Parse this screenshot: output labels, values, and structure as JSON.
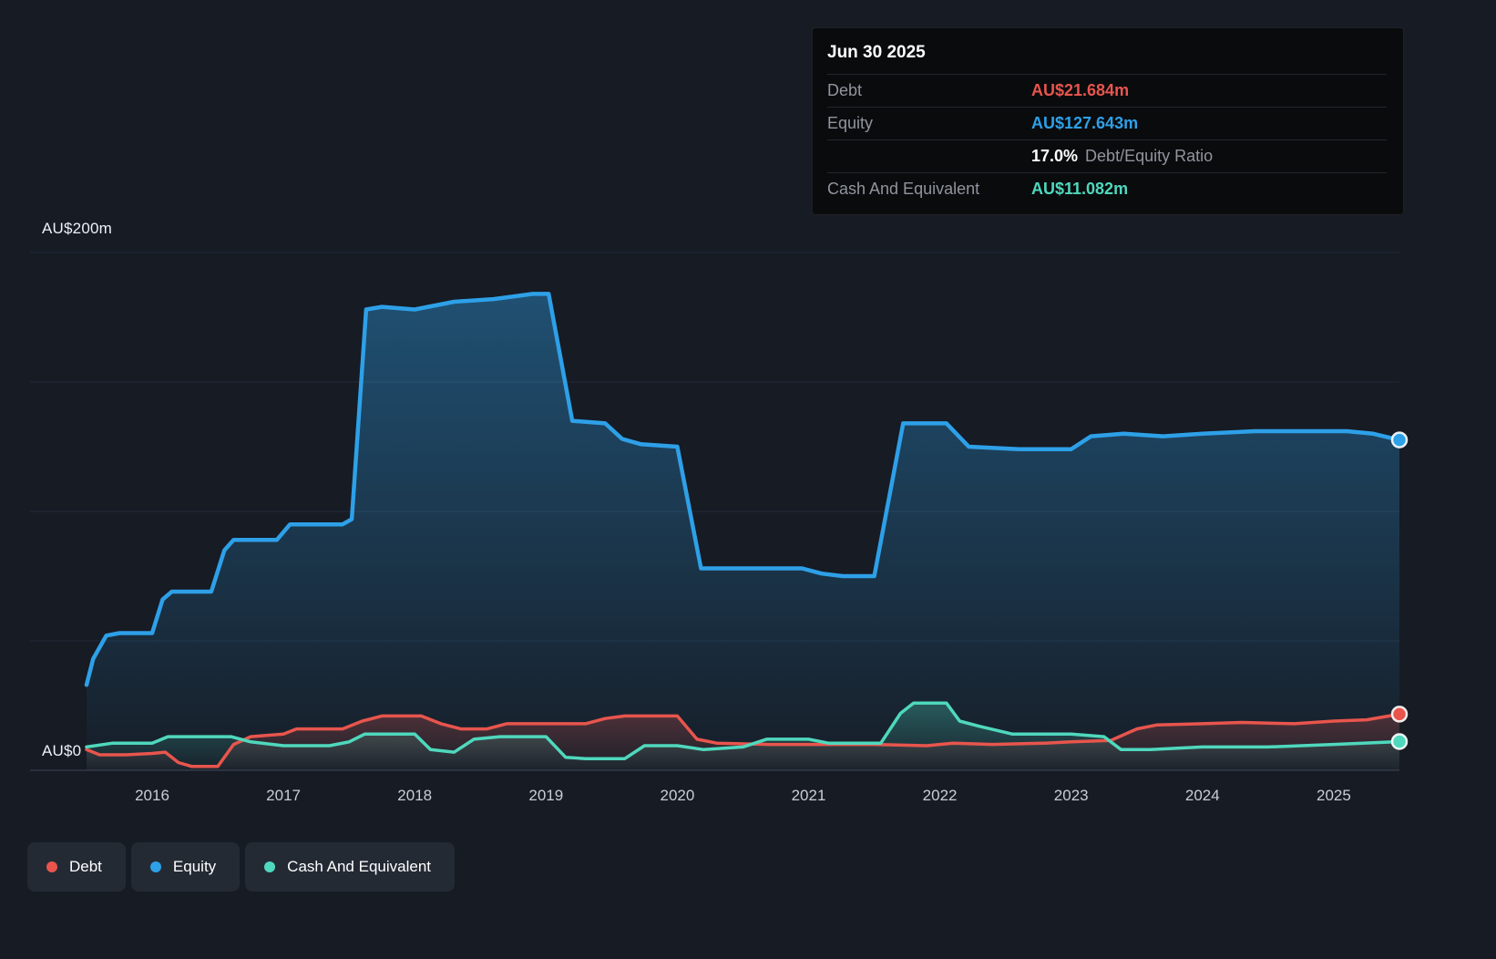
{
  "axis": {
    "y_top_label": "AU$200m",
    "y_zero_label": "AU$0"
  },
  "tooltip": {
    "date": "Jun 30 2025",
    "debt_label": "Debt",
    "debt_value": "AU$21.684m",
    "equity_label": "Equity",
    "equity_value": "AU$127.643m",
    "ratio_value": "17.0%",
    "ratio_label": "Debt/Equity Ratio",
    "cash_label": "Cash And Equivalent",
    "cash_value": "AU$11.082m"
  },
  "legend": {
    "items": [
      {
        "label": "Debt",
        "color": "#e8554d"
      },
      {
        "label": "Equity",
        "color": "#2ea0e8"
      },
      {
        "label": "Cash And Equivalent",
        "color": "#4fd8bd"
      }
    ]
  },
  "colors": {
    "background": "#161b24",
    "grid": "#222a37",
    "zero_axis": "#3e4656",
    "tick_text": "#c9ced6",
    "debt": "#e8554d",
    "equity": "#2ea0e8",
    "cash": "#4fd8bd"
  },
  "chart_data": {
    "type": "area",
    "title": "",
    "xlabel": "",
    "ylabel": "AU$m",
    "xlim": [
      2015.07,
      2025.5
    ],
    "ylim": [
      0,
      200
    ],
    "x_ticks": [
      2016,
      2017,
      2018,
      2019,
      2020,
      2021,
      2022,
      2023,
      2024,
      2025
    ],
    "gridlines_y": [
      0,
      50,
      100,
      150,
      200
    ],
    "legend_position": "bottom-left",
    "series": [
      {
        "name": "Equity",
        "color": "#2ea0e8",
        "width": 4.5,
        "fill_opacity": 0.4,
        "points": [
          [
            2015.5,
            33
          ],
          [
            2015.55,
            43
          ],
          [
            2015.65,
            52
          ],
          [
            2015.75,
            53
          ],
          [
            2016.0,
            53
          ],
          [
            2016.08,
            66
          ],
          [
            2016.15,
            69
          ],
          [
            2016.45,
            69
          ],
          [
            2016.55,
            85
          ],
          [
            2016.62,
            89
          ],
          [
            2016.95,
            89
          ],
          [
            2017.05,
            95
          ],
          [
            2017.45,
            95
          ],
          [
            2017.52,
            97
          ],
          [
            2017.63,
            178
          ],
          [
            2017.75,
            179
          ],
          [
            2018.0,
            178
          ],
          [
            2018.3,
            181
          ],
          [
            2018.6,
            182
          ],
          [
            2018.9,
            184
          ],
          [
            2019.02,
            184
          ],
          [
            2019.2,
            135
          ],
          [
            2019.45,
            134
          ],
          [
            2019.58,
            128
          ],
          [
            2019.72,
            126
          ],
          [
            2020.0,
            125
          ],
          [
            2020.18,
            78
          ],
          [
            2020.5,
            78
          ],
          [
            2020.95,
            78
          ],
          [
            2021.1,
            76
          ],
          [
            2021.26,
            75
          ],
          [
            2021.5,
            75
          ],
          [
            2021.72,
            134
          ],
          [
            2022.05,
            134
          ],
          [
            2022.22,
            125
          ],
          [
            2022.6,
            124
          ],
          [
            2023.0,
            124
          ],
          [
            2023.15,
            129
          ],
          [
            2023.4,
            130
          ],
          [
            2023.7,
            129
          ],
          [
            2024.0,
            130
          ],
          [
            2024.4,
            131
          ],
          [
            2024.8,
            131
          ],
          [
            2025.1,
            131
          ],
          [
            2025.3,
            130
          ],
          [
            2025.5,
            127.6
          ]
        ]
      },
      {
        "name": "Debt",
        "color": "#e8554d",
        "width": 3.5,
        "fill_opacity": 0.26,
        "points": [
          [
            2015.5,
            8
          ],
          [
            2015.6,
            6
          ],
          [
            2015.8,
            6
          ],
          [
            2016.0,
            6.5
          ],
          [
            2016.1,
            7
          ],
          [
            2016.2,
            3
          ],
          [
            2016.3,
            1.5
          ],
          [
            2016.5,
            1.5
          ],
          [
            2016.62,
            10
          ],
          [
            2016.75,
            13
          ],
          [
            2017.0,
            14
          ],
          [
            2017.1,
            16
          ],
          [
            2017.45,
            16
          ],
          [
            2017.6,
            19
          ],
          [
            2017.75,
            21
          ],
          [
            2018.05,
            21
          ],
          [
            2018.2,
            18
          ],
          [
            2018.35,
            16
          ],
          [
            2018.55,
            16
          ],
          [
            2018.7,
            18
          ],
          [
            2019.0,
            18
          ],
          [
            2019.3,
            18
          ],
          [
            2019.45,
            20
          ],
          [
            2019.6,
            21
          ],
          [
            2020.0,
            21
          ],
          [
            2020.15,
            12
          ],
          [
            2020.3,
            10.5
          ],
          [
            2020.7,
            10
          ],
          [
            2021.0,
            10
          ],
          [
            2021.5,
            10
          ],
          [
            2021.9,
            9.5
          ],
          [
            2022.1,
            10.5
          ],
          [
            2022.4,
            10
          ],
          [
            2022.8,
            10.5
          ],
          [
            2023.0,
            11
          ],
          [
            2023.3,
            11.5
          ],
          [
            2023.5,
            16
          ],
          [
            2023.65,
            17.5
          ],
          [
            2024.0,
            18
          ],
          [
            2024.3,
            18.5
          ],
          [
            2024.7,
            18
          ],
          [
            2025.0,
            19
          ],
          [
            2025.25,
            19.5
          ],
          [
            2025.5,
            21.7
          ]
        ]
      },
      {
        "name": "Cash And Equivalent",
        "color": "#4fd8bd",
        "width": 3.5,
        "fill_opacity": 0.3,
        "points": [
          [
            2015.5,
            9
          ],
          [
            2015.7,
            10.5
          ],
          [
            2016.0,
            10.5
          ],
          [
            2016.12,
            13
          ],
          [
            2016.4,
            13
          ],
          [
            2016.6,
            13
          ],
          [
            2016.75,
            11
          ],
          [
            2017.0,
            9.5
          ],
          [
            2017.35,
            9.5
          ],
          [
            2017.5,
            11
          ],
          [
            2017.62,
            14
          ],
          [
            2018.0,
            14
          ],
          [
            2018.12,
            8
          ],
          [
            2018.3,
            7
          ],
          [
            2018.45,
            12
          ],
          [
            2018.65,
            13
          ],
          [
            2019.0,
            13
          ],
          [
            2019.15,
            5
          ],
          [
            2019.3,
            4.5
          ],
          [
            2019.6,
            4.5
          ],
          [
            2019.75,
            9.5
          ],
          [
            2020.0,
            9.5
          ],
          [
            2020.2,
            8
          ],
          [
            2020.5,
            9
          ],
          [
            2020.68,
            12
          ],
          [
            2021.0,
            12
          ],
          [
            2021.15,
            10.5
          ],
          [
            2021.55,
            10.5
          ],
          [
            2021.7,
            22
          ],
          [
            2021.8,
            26
          ],
          [
            2022.05,
            26
          ],
          [
            2022.15,
            19
          ],
          [
            2022.3,
            17
          ],
          [
            2022.55,
            14
          ],
          [
            2023.0,
            14
          ],
          [
            2023.25,
            13
          ],
          [
            2023.38,
            8
          ],
          [
            2023.6,
            8
          ],
          [
            2024.0,
            9
          ],
          [
            2024.5,
            9
          ],
          [
            2025.0,
            10
          ],
          [
            2025.5,
            11.1
          ]
        ]
      }
    ]
  }
}
